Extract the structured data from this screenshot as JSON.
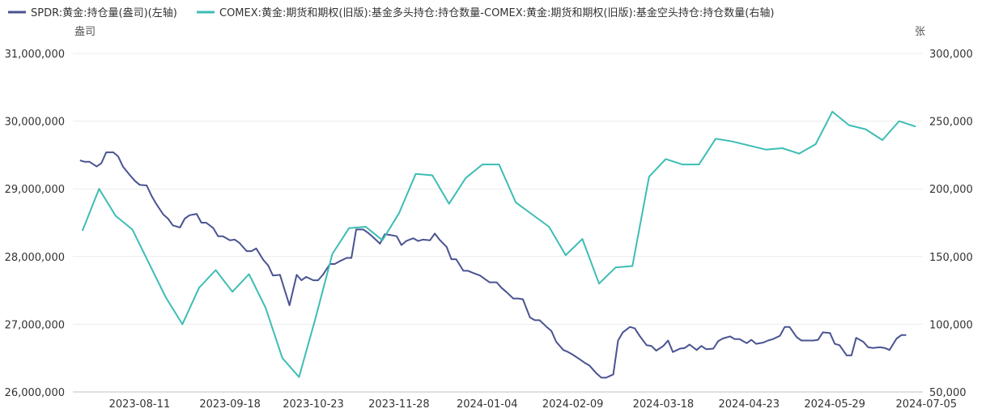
{
  "chart_data": {
    "type": "line",
    "legend_position": "top-left",
    "grid": true,
    "x_tick_labels": [
      "2023-08-11",
      "2023-09-18",
      "2023-10-23",
      "2023-11-28",
      "2024-01-04",
      "2024-02-09",
      "2024-03-18",
      "2024-04-23",
      "2024-05-29",
      "2024-07-05"
    ],
    "left_axis": {
      "unit": "盎司",
      "ylim": [
        26000000,
        31000000
      ],
      "ticks": [
        26000000,
        27000000,
        28000000,
        29000000,
        30000000,
        31000000
      ],
      "tick_labels": [
        "26,000,000",
        "27,000,000",
        "28,000,000",
        "29,000,000",
        "30,000,000",
        "31,000,000"
      ]
    },
    "right_axis": {
      "unit": "张",
      "ylim": [
        50000,
        300000
      ],
      "ticks": [
        50000,
        100000,
        150000,
        200000,
        250000,
        300000
      ],
      "tick_labels": [
        "50,000",
        "100,000",
        "150,000",
        "200,000",
        "250,000",
        "300,000"
      ]
    },
    "series": [
      {
        "name": "SPDR:黄金:持仓量(盎司)(左轴)",
        "axis": "left",
        "color": "#4a5391",
        "points": [
          [
            "2023-07-17",
            29420000
          ],
          [
            "2023-07-19",
            29400000
          ],
          [
            "2023-07-21",
            29400000
          ],
          [
            "2023-07-24",
            29330000
          ],
          [
            "2023-07-26",
            29380000
          ],
          [
            "2023-07-28",
            29540000
          ],
          [
            "2023-07-31",
            29540000
          ],
          [
            "2023-08-02",
            29480000
          ],
          [
            "2023-08-04",
            29330000
          ],
          [
            "2023-08-07",
            29200000
          ],
          [
            "2023-08-09",
            29120000
          ],
          [
            "2023-08-11",
            29060000
          ],
          [
            "2023-08-14",
            29050000
          ],
          [
            "2023-08-16",
            28900000
          ],
          [
            "2023-08-18",
            28780000
          ],
          [
            "2023-08-21",
            28620000
          ],
          [
            "2023-08-23",
            28560000
          ],
          [
            "2023-08-25",
            28460000
          ],
          [
            "2023-08-28",
            28430000
          ],
          [
            "2023-08-30",
            28560000
          ],
          [
            "2023-09-01",
            28610000
          ],
          [
            "2023-09-04",
            28630000
          ],
          [
            "2023-09-06",
            28500000
          ],
          [
            "2023-09-08",
            28500000
          ],
          [
            "2023-09-11",
            28420000
          ],
          [
            "2023-09-13",
            28300000
          ],
          [
            "2023-09-15",
            28300000
          ],
          [
            "2023-09-18",
            28240000
          ],
          [
            "2023-09-20",
            28250000
          ],
          [
            "2023-09-22",
            28200000
          ],
          [
            "2023-09-25",
            28080000
          ],
          [
            "2023-09-27",
            28080000
          ],
          [
            "2023-09-29",
            28120000
          ],
          [
            "2023-10-02",
            27950000
          ],
          [
            "2023-10-04",
            27870000
          ],
          [
            "2023-10-06",
            27720000
          ],
          [
            "2023-10-09",
            27730000
          ],
          [
            "2023-10-11",
            27500000
          ],
          [
            "2023-10-13",
            27280000
          ],
          [
            "2023-10-16",
            27730000
          ],
          [
            "2023-10-18",
            27650000
          ],
          [
            "2023-10-20",
            27700000
          ],
          [
            "2023-10-23",
            27650000
          ],
          [
            "2023-10-25",
            27650000
          ],
          [
            "2023-10-27",
            27730000
          ],
          [
            "2023-10-30",
            27890000
          ],
          [
            "2023-11-01",
            27890000
          ],
          [
            "2023-11-03",
            27930000
          ],
          [
            "2023-11-06",
            27980000
          ],
          [
            "2023-11-08",
            27980000
          ],
          [
            "2023-11-10",
            28400000
          ],
          [
            "2023-11-13",
            28400000
          ],
          [
            "2023-11-15",
            28350000
          ],
          [
            "2023-11-17",
            28290000
          ],
          [
            "2023-11-20",
            28190000
          ],
          [
            "2023-11-22",
            28330000
          ],
          [
            "2023-11-24",
            28320000
          ],
          [
            "2023-11-27",
            28300000
          ],
          [
            "2023-11-29",
            28170000
          ],
          [
            "2023-12-01",
            28230000
          ],
          [
            "2023-12-04",
            28270000
          ],
          [
            "2023-12-06",
            28230000
          ],
          [
            "2023-12-08",
            28250000
          ],
          [
            "2023-12-11",
            28240000
          ],
          [
            "2023-12-13",
            28340000
          ],
          [
            "2023-12-15",
            28250000
          ],
          [
            "2023-12-18",
            28140000
          ],
          [
            "2023-12-20",
            27960000
          ],
          [
            "2023-12-22",
            27960000
          ],
          [
            "2023-12-25",
            27790000
          ],
          [
            "2023-12-27",
            27790000
          ],
          [
            "2023-12-29",
            27760000
          ],
          [
            "2024-01-01",
            27720000
          ],
          [
            "2024-01-03",
            27670000
          ],
          [
            "2024-01-05",
            27620000
          ],
          [
            "2024-01-08",
            27620000
          ],
          [
            "2024-01-10",
            27540000
          ],
          [
            "2024-01-12",
            27480000
          ],
          [
            "2024-01-15",
            27380000
          ],
          [
            "2024-01-17",
            27380000
          ],
          [
            "2024-01-19",
            27370000
          ],
          [
            "2024-01-22",
            27100000
          ],
          [
            "2024-01-24",
            27060000
          ],
          [
            "2024-01-26",
            27060000
          ],
          [
            "2024-01-29",
            26960000
          ],
          [
            "2024-01-31",
            26900000
          ],
          [
            "2024-02-02",
            26740000
          ],
          [
            "2024-02-05",
            26620000
          ],
          [
            "2024-02-07",
            26590000
          ],
          [
            "2024-02-09",
            26550000
          ],
          [
            "2024-02-12",
            26480000
          ],
          [
            "2024-02-14",
            26430000
          ],
          [
            "2024-02-16",
            26390000
          ],
          [
            "2024-02-19",
            26270000
          ],
          [
            "2024-02-21",
            26210000
          ],
          [
            "2024-02-23",
            26210000
          ],
          [
            "2024-02-26",
            26260000
          ],
          [
            "2024-02-28",
            26760000
          ],
          [
            "2024-03-01",
            26880000
          ],
          [
            "2024-03-04",
            26960000
          ],
          [
            "2024-03-06",
            26940000
          ],
          [
            "2024-03-08",
            26830000
          ],
          [
            "2024-03-11",
            26690000
          ],
          [
            "2024-03-13",
            26680000
          ],
          [
            "2024-03-15",
            26610000
          ],
          [
            "2024-03-18",
            26680000
          ],
          [
            "2024-03-20",
            26760000
          ],
          [
            "2024-03-22",
            26590000
          ],
          [
            "2024-03-25",
            26640000
          ],
          [
            "2024-03-27",
            26650000
          ],
          [
            "2024-03-29",
            26700000
          ],
          [
            "2024-04-01",
            26620000
          ],
          [
            "2024-04-03",
            26680000
          ],
          [
            "2024-04-05",
            26630000
          ],
          [
            "2024-04-08",
            26640000
          ],
          [
            "2024-04-10",
            26750000
          ],
          [
            "2024-04-12",
            26790000
          ],
          [
            "2024-04-15",
            26820000
          ],
          [
            "2024-04-17",
            26780000
          ],
          [
            "2024-04-19",
            26780000
          ],
          [
            "2024-04-22",
            26720000
          ],
          [
            "2024-04-24",
            26770000
          ],
          [
            "2024-04-26",
            26710000
          ],
          [
            "2024-04-29",
            26730000
          ],
          [
            "2024-05-01",
            26760000
          ],
          [
            "2024-05-03",
            26780000
          ],
          [
            "2024-05-06",
            26830000
          ],
          [
            "2024-05-08",
            26960000
          ],
          [
            "2024-05-10",
            26960000
          ],
          [
            "2024-05-13",
            26810000
          ],
          [
            "2024-05-15",
            26760000
          ],
          [
            "2024-05-17",
            26760000
          ],
          [
            "2024-05-20",
            26760000
          ],
          [
            "2024-05-22",
            26770000
          ],
          [
            "2024-05-24",
            26880000
          ],
          [
            "2024-05-27",
            26870000
          ],
          [
            "2024-05-29",
            26710000
          ],
          [
            "2024-05-31",
            26690000
          ],
          [
            "2024-06-03",
            26540000
          ],
          [
            "2024-06-05",
            26540000
          ],
          [
            "2024-06-07",
            26800000
          ],
          [
            "2024-06-10",
            26740000
          ],
          [
            "2024-06-12",
            26660000
          ],
          [
            "2024-06-14",
            26650000
          ],
          [
            "2024-06-17",
            26660000
          ],
          [
            "2024-06-19",
            26650000
          ],
          [
            "2024-06-21",
            26620000
          ],
          [
            "2024-06-24",
            26790000
          ],
          [
            "2024-06-26",
            26840000
          ],
          [
            "2024-06-28",
            26840000
          ]
        ]
      },
      {
        "name": "COMEX:黄金:期货和期权(旧版):基金多头持仓:持仓数量-COMEX:黄金:期货和期权(旧版):基金空头持仓:持仓数量(右轴)",
        "axis": "right",
        "color": "#3dbdb4",
        "points": [
          [
            "2023-07-18",
            169000
          ],
          [
            "2023-07-25",
            200000
          ],
          [
            "2023-08-01",
            180000
          ],
          [
            "2023-08-08",
            170000
          ],
          [
            "2023-08-15",
            145000
          ],
          [
            "2023-08-22",
            120000
          ],
          [
            "2023-08-29",
            100000
          ],
          [
            "2023-09-05",
            127000
          ],
          [
            "2023-09-12",
            140000
          ],
          [
            "2023-09-19",
            124000
          ],
          [
            "2023-09-26",
            137000
          ],
          [
            "2023-10-03",
            112000
          ],
          [
            "2023-10-10",
            75000
          ],
          [
            "2023-10-17",
            61000
          ],
          [
            "2023-10-24",
            105000
          ],
          [
            "2023-10-31",
            152000
          ],
          [
            "2023-11-07",
            171000
          ],
          [
            "2023-11-14",
            172000
          ],
          [
            "2023-11-21",
            162000
          ],
          [
            "2023-11-28",
            182000
          ],
          [
            "2023-12-05",
            211000
          ],
          [
            "2023-12-12",
            210000
          ],
          [
            "2023-12-19",
            189000
          ],
          [
            "2023-12-26",
            208000
          ],
          [
            "2024-01-02",
            218000
          ],
          [
            "2024-01-09",
            218000
          ],
          [
            "2024-01-16",
            190000
          ],
          [
            "2024-01-23",
            181000
          ],
          [
            "2024-01-30",
            172000
          ],
          [
            "2024-02-06",
            151000
          ],
          [
            "2024-02-13",
            163000
          ],
          [
            "2024-02-20",
            130000
          ],
          [
            "2024-02-27",
            142000
          ],
          [
            "2024-03-05",
            143000
          ],
          [
            "2024-03-12",
            209000
          ],
          [
            "2024-03-19",
            222000
          ],
          [
            "2024-03-26",
            218000
          ],
          [
            "2024-04-02",
            218000
          ],
          [
            "2024-04-09",
            237000
          ],
          [
            "2024-04-16",
            235000
          ],
          [
            "2024-04-23",
            232000
          ],
          [
            "2024-04-30",
            229000
          ],
          [
            "2024-05-07",
            230000
          ],
          [
            "2024-05-14",
            226000
          ],
          [
            "2024-05-21",
            233000
          ],
          [
            "2024-05-28",
            257000
          ],
          [
            "2024-06-04",
            247000
          ],
          [
            "2024-06-11",
            244000
          ],
          [
            "2024-06-18",
            236000
          ],
          [
            "2024-06-25",
            250000
          ],
          [
            "2024-07-02",
            246000
          ]
        ]
      }
    ]
  }
}
